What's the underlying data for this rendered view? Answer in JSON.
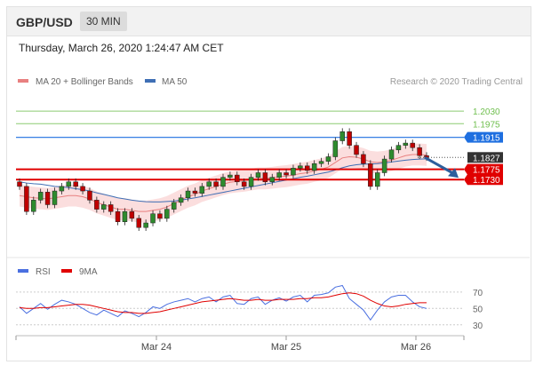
{
  "header": {
    "pair": "GBP/USD",
    "timeframe": "30 MIN"
  },
  "datetime": "Thursday, March 26, 2020 1:24:47 AM CET",
  "credit": "Research © 2020 Trading Central",
  "colors": {
    "resistance": "#6fbf4e",
    "pivot": "#1e6fe0",
    "support": "#e00000",
    "current": "#333333",
    "candle_up": "#2e8b2e",
    "candle_down": "#c00000",
    "band_fill": "#f9d3d3",
    "ma20": "#e88080",
    "ma50": "#3f6fb5",
    "arrow": "#2d5e9c"
  },
  "chart_data": [
    {
      "type": "line",
      "title": "",
      "legend": [
        {
          "name": "MA 20 + Bollinger Bands",
          "color": "#e88080"
        },
        {
          "name": "MA 50",
          "color": "#3f6fb5"
        }
      ],
      "x_ticks": [
        "Mar 24",
        "Mar 25",
        "Mar 26"
      ],
      "ylim": [
        1.14,
        1.212
      ],
      "levels": [
        {
          "value": 1.203,
          "label": "1.2030",
          "role": "resistance"
        },
        {
          "value": 1.1975,
          "label": "1.1975",
          "role": "resistance"
        },
        {
          "value": 1.1915,
          "label": "1.1915",
          "role": "pivot"
        },
        {
          "value": 1.1827,
          "label": "1.1827",
          "role": "current"
        },
        {
          "value": 1.1775,
          "label": "1.1775",
          "role": "support"
        },
        {
          "value": 1.173,
          "label": "1.1730",
          "role": "support"
        }
      ],
      "close": [
        1.17,
        1.159,
        1.164,
        1.1675,
        1.162,
        1.168,
        1.17,
        1.172,
        1.17,
        1.168,
        1.164,
        1.16,
        1.162,
        1.159,
        1.1545,
        1.159,
        1.156,
        1.152,
        1.154,
        1.158,
        1.156,
        1.16,
        1.163,
        1.165,
        1.168,
        1.167,
        1.17,
        1.172,
        1.17,
        1.174,
        1.175,
        1.172,
        1.17,
        1.174,
        1.176,
        1.172,
        1.174,
        1.176,
        1.175,
        1.178,
        1.179,
        1.177,
        1.18,
        1.181,
        1.183,
        1.19,
        1.194,
        1.188,
        1.184,
        1.18,
        1.17,
        1.176,
        1.182,
        1.186,
        1.188,
        1.189,
        1.187,
        1.1835,
        1.1827
      ],
      "ma20": [
        1.166,
        1.1655,
        1.165,
        1.1648,
        1.1645,
        1.165,
        1.1655,
        1.166,
        1.166,
        1.1655,
        1.1645,
        1.163,
        1.162,
        1.161,
        1.16,
        1.16,
        1.1595,
        1.159,
        1.159,
        1.1595,
        1.16,
        1.161,
        1.1625,
        1.164,
        1.1655,
        1.1665,
        1.168,
        1.169,
        1.17,
        1.171,
        1.1718,
        1.1722,
        1.1725,
        1.173,
        1.1735,
        1.1735,
        1.1738,
        1.1742,
        1.1745,
        1.175,
        1.1756,
        1.176,
        1.1768,
        1.1775,
        1.1785,
        1.1805,
        1.1825,
        1.183,
        1.1828,
        1.182,
        1.1808,
        1.1805,
        1.1808,
        1.1815,
        1.1825,
        1.1835,
        1.184,
        1.184,
        1.1838
      ],
      "ma50": [
        1.172,
        1.1715,
        1.1712,
        1.171,
        1.1705,
        1.17,
        1.1698,
        1.1695,
        1.169,
        1.1686,
        1.168,
        1.1672,
        1.1665,
        1.1658,
        1.165,
        1.1645,
        1.164,
        1.1636,
        1.1633,
        1.1632,
        1.1632,
        1.1634,
        1.1636,
        1.164,
        1.1645,
        1.165,
        1.1656,
        1.1662,
        1.1668,
        1.1674,
        1.168,
        1.1686,
        1.1692,
        1.1698,
        1.1704,
        1.171,
        1.1716,
        1.1722,
        1.1728,
        1.1734,
        1.174,
        1.1745,
        1.1751,
        1.1757,
        1.1763,
        1.1772,
        1.1782,
        1.179,
        1.1795,
        1.1798,
        1.1798,
        1.18,
        1.1803,
        1.1807,
        1.1811,
        1.1815,
        1.1818,
        1.182,
        1.1821
      ],
      "band_width": 0.0048,
      "projection": {
        "from": 1.1827,
        "to": 1.173
      }
    },
    {
      "type": "line",
      "legend": [
        {
          "name": "RSI",
          "color": "#4a6fe0"
        },
        {
          "name": "9MA",
          "color": "#e00000"
        }
      ],
      "y_ticks": [
        "70",
        "50",
        "30"
      ],
      "ylim": [
        20,
        85
      ],
      "rsi": [
        52,
        44,
        50,
        56,
        49,
        55,
        60,
        58,
        55,
        50,
        45,
        42,
        48,
        44,
        40,
        47,
        44,
        40,
        45,
        52,
        50,
        55,
        58,
        60,
        62,
        58,
        62,
        64,
        58,
        64,
        66,
        56,
        55,
        62,
        64,
        55,
        60,
        63,
        59,
        64,
        66,
        58,
        66,
        67,
        69,
        76,
        78,
        62,
        55,
        48,
        36,
        48,
        58,
        64,
        66,
        66,
        58,
        52,
        50
      ],
      "ma9": [
        51,
        50,
        50,
        51,
        51,
        52,
        53,
        54,
        55,
        55,
        54,
        52,
        50,
        48,
        46,
        45,
        45,
        44,
        44,
        45,
        46,
        48,
        50,
        52,
        54,
        56,
        58,
        59,
        60,
        61,
        62,
        61,
        60,
        60,
        61,
        60,
        60,
        61,
        61,
        61,
        62,
        62,
        63,
        63,
        64,
        66,
        68,
        69,
        68,
        65,
        60,
        56,
        53,
        52,
        53,
        55,
        56,
        57,
        57
      ],
      "ref_line": 50
    }
  ]
}
